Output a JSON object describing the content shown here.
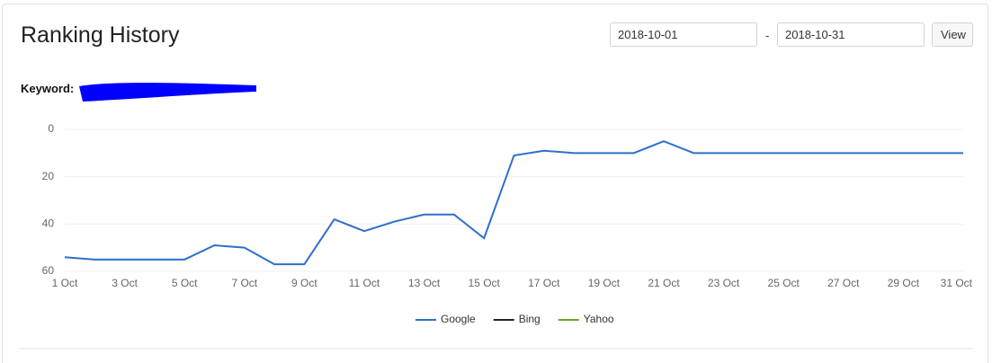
{
  "header": {
    "title": "Ranking History"
  },
  "controls": {
    "start_date": "2018-10-01",
    "separator": "-",
    "end_date": "2018-10-31",
    "button": "View"
  },
  "keyword_label": "Keyword:",
  "chart_data": {
    "type": "line",
    "categories": [
      "1 Oct",
      null,
      "3 Oct",
      null,
      "5 Oct",
      null,
      "7 Oct",
      null,
      "9 Oct",
      null,
      "11 Oct",
      null,
      "13 Oct",
      null,
      "15 Oct",
      null,
      "17 Oct",
      null,
      "19 Oct",
      null,
      "21 Oct",
      null,
      "23 Oct",
      null,
      "25 Oct",
      null,
      "27 Oct",
      null,
      "29 Oct",
      null,
      "31 Oct"
    ],
    "series": [
      {
        "name": "Google",
        "color": "#2f6fca",
        "values": [
          54,
          55,
          55,
          55,
          55,
          49,
          50,
          57,
          57,
          38,
          43,
          39,
          36,
          36,
          46,
          11,
          9,
          10,
          10,
          10,
          5,
          10,
          10,
          10,
          10,
          10,
          10,
          10,
          10,
          10,
          10
        ]
      },
      {
        "name": "Bing",
        "color": "#222222",
        "values": [
          null,
          null,
          null,
          null,
          null,
          null,
          null,
          null,
          null,
          null,
          null,
          null,
          null,
          null,
          null,
          null,
          null,
          null,
          null,
          null,
          null,
          null,
          null,
          null,
          null,
          null,
          null,
          null,
          null,
          null,
          null
        ]
      },
      {
        "name": "Yahoo",
        "color": "#6aa829",
        "values": [
          null,
          null,
          null,
          null,
          null,
          null,
          null,
          null,
          null,
          null,
          null,
          null,
          null,
          null,
          null,
          null,
          null,
          null,
          null,
          null,
          null,
          null,
          null,
          null,
          null,
          null,
          null,
          null,
          null,
          null,
          null
        ]
      }
    ],
    "ylim": [
      0,
      60
    ],
    "yticks": [
      0,
      20,
      40,
      60
    ],
    "y_reversed": true,
    "grid": true,
    "legend": "bottom"
  }
}
